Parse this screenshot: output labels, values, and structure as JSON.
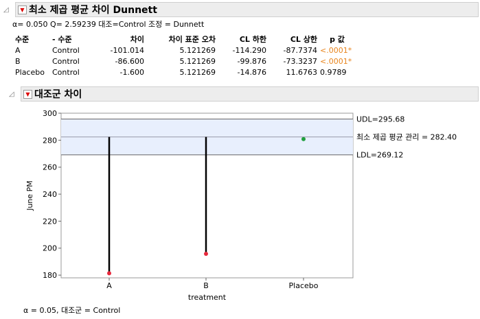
{
  "section1": {
    "title": "최소 제곱 평균 차이 Dunnett",
    "subtitle": "α= 0.050  Q= 2.59239  대조=Control 조정 = Dunnett"
  },
  "table": {
    "headers": [
      "수준",
      "- 수준",
      "차이",
      "차이 표준 오차",
      "CL 하한",
      "CL 상한",
      "p 값"
    ],
    "rows": [
      [
        "A",
        "Control",
        "-101.014",
        "5.121269",
        "-114.290",
        "-87.7374",
        "<.0001*"
      ],
      [
        "B",
        "Control",
        "-86.600",
        "5.121269",
        "-99.876",
        "-73.3237",
        "<.0001*"
      ],
      [
        "Placebo",
        "Control",
        "-1.600",
        "5.121269",
        "-14.876",
        "11.6763",
        "0.9789"
      ]
    ]
  },
  "section2": {
    "title": "대조군 차이"
  },
  "chart_data": {
    "type": "scatter",
    "categories": [
      "A",
      "B",
      "Placebo"
    ],
    "values": [
      181.386,
      195.8,
      280.8
    ],
    "center": 282.4,
    "udl": 295.68,
    "ldl": 269.12,
    "center_label": "최소 제곱 평균 관리 = 282.40",
    "udl_label": "UDL=295.68",
    "ldl_label": "LDL=269.12",
    "xlabel": "treatment",
    "ylabel": "June PM",
    "ylim": [
      178,
      300
    ],
    "yticks": [
      180,
      200,
      220,
      240,
      260,
      280,
      300
    ],
    "footnote": "α = 0.05, 대조군 = Control",
    "colors": {
      "significant": "#e8283c",
      "nonsignificant": "#22a040",
      "band": "#e8effd"
    }
  }
}
